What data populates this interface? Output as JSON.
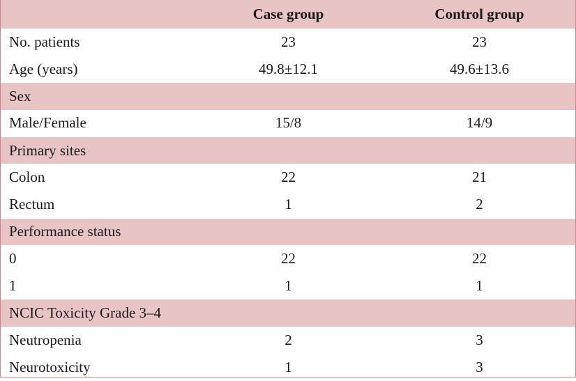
{
  "header": {
    "col1": "",
    "col2": "Case group",
    "col3": "Control group"
  },
  "rows": [
    {
      "type": "data",
      "label": "No. patients",
      "case": "23",
      "control": "23"
    },
    {
      "type": "data",
      "label": "Age (years)",
      "case": "49.8±12.1",
      "control": "49.6±13.6"
    },
    {
      "type": "section",
      "label": "Sex"
    },
    {
      "type": "data",
      "label": "Male/Female",
      "case": "15/8",
      "control": "14/9"
    },
    {
      "type": "section",
      "label": "Primary sites"
    },
    {
      "type": "data",
      "label": "Colon",
      "case": "22",
      "control": "21"
    },
    {
      "type": "data",
      "label": "Rectum",
      "case": "1",
      "control": "2"
    },
    {
      "type": "section",
      "label": "Performance status"
    },
    {
      "type": "data",
      "label": "0",
      "case": "22",
      "control": "22"
    },
    {
      "type": "data",
      "label": "1",
      "case": "1",
      "control": "1"
    },
    {
      "type": "section",
      "label": "NCIC Toxicity Grade 3–4"
    },
    {
      "type": "data",
      "label": "Neutropenia",
      "case": "2",
      "control": "3"
    },
    {
      "type": "data",
      "label": "Neurotoxicity",
      "case": "1",
      "control": "3"
    }
  ],
  "colors": {
    "header_bg": "#e9c4c5",
    "section_bg": "#e9c4c5",
    "border": "#c9848c"
  }
}
